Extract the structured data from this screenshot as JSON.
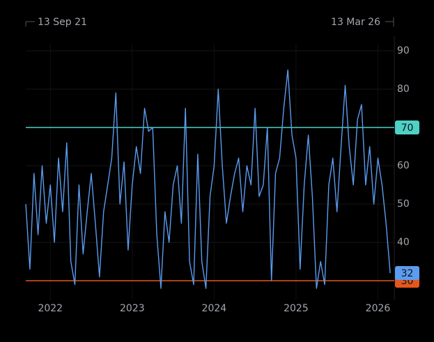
{
  "chart_data": {
    "type": "line",
    "range_start": "13 Sep 21",
    "range_end": "13 Mar 26",
    "x": [
      2021.7,
      2021.75,
      2021.8,
      2021.85,
      2021.9,
      2021.95,
      2022.0,
      2022.05,
      2022.1,
      2022.15,
      2022.2,
      2022.25,
      2022.3,
      2022.35,
      2022.4,
      2022.45,
      2022.5,
      2022.55,
      2022.6,
      2022.65,
      2022.7,
      2022.75,
      2022.8,
      2022.85,
      2022.9,
      2022.95,
      2023.0,
      2023.05,
      2023.1,
      2023.15,
      2023.2,
      2023.25,
      2023.3,
      2023.35,
      2023.4,
      2023.45,
      2023.5,
      2023.55,
      2023.6,
      2023.65,
      2023.7,
      2023.75,
      2023.8,
      2023.85,
      2023.9,
      2023.95,
      2024.0,
      2024.05,
      2024.1,
      2024.15,
      2024.2,
      2024.25,
      2024.3,
      2024.35,
      2024.4,
      2024.45,
      2024.5,
      2024.55,
      2024.6,
      2024.65,
      2024.7,
      2024.75,
      2024.8,
      2024.85,
      2024.9,
      2024.95,
      2025.0,
      2025.05,
      2025.1,
      2025.15,
      2025.2,
      2025.25,
      2025.3,
      2025.35,
      2025.4,
      2025.45,
      2025.5,
      2025.55,
      2025.6,
      2025.65,
      2025.7,
      2025.75,
      2025.8,
      2025.85,
      2025.9,
      2025.95,
      2026.0,
      2026.05,
      2026.1,
      2026.15
    ],
    "series": [
      {
        "color": "#5b9cf0",
        "values": [
          50,
          33,
          58,
          42,
          60,
          45,
          55,
          40,
          62,
          48,
          66,
          35,
          29,
          55,
          37,
          48,
          58,
          45,
          31,
          48,
          55,
          62,
          79,
          50,
          61,
          38,
          55,
          65,
          58,
          75,
          69,
          70,
          42,
          28,
          48,
          40,
          55,
          60,
          45,
          75,
          35,
          29,
          63,
          35,
          28,
          52,
          60,
          80,
          60,
          45,
          52,
          58,
          62,
          48,
          60,
          55,
          75,
          52,
          55,
          70,
          30,
          58,
          62,
          75,
          85,
          68,
          62,
          33,
          55,
          68,
          52,
          28,
          35,
          29,
          55,
          62,
          48,
          65,
          81,
          65,
          55,
          72,
          76,
          55,
          65,
          50,
          62,
          55,
          45,
          32
        ]
      }
    ],
    "levels": [
      {
        "value": 70,
        "color": "#4fd1c5"
      },
      {
        "value": 30,
        "color": "#e4571c"
      }
    ],
    "last_value_color": "#5b9cf0",
    "xlim": [
      2021.7,
      2026.2
    ],
    "xticks": [
      2022,
      2023,
      2024,
      2025,
      2026
    ],
    "ylim": [
      25,
      92
    ],
    "yticks": [
      40,
      50,
      60,
      80,
      90
    ],
    "grid": true
  }
}
